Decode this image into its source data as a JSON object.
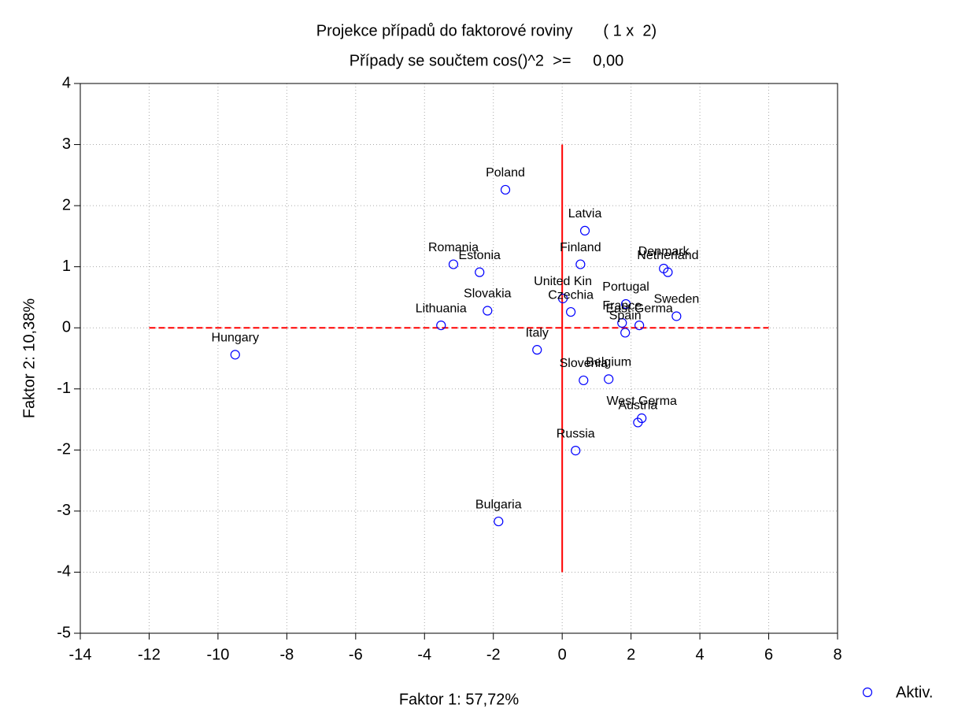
{
  "chart_data": {
    "type": "scatter",
    "title": "Projekce případů do faktorové roviny       ( 1 x  2)",
    "subtitle": "Případy se součtem cos()^2  >=     0,00",
    "x_label": "Faktor 1: 57,72%",
    "y_label": "Faktor 2: 10,38%",
    "series": [
      {
        "name": "Aktiv.",
        "color": "#0000ff",
        "labels": [
          "Poland",
          "Latvia",
          "Finland",
          "Denmark",
          "Netherland",
          "Romania",
          "Estonia",
          "United Kin",
          "Portugal",
          "Czechia",
          "Sweden",
          "France",
          "East Germa",
          "Spain",
          "Slovakia",
          "Lithuania",
          "Hungary",
          "Italy",
          "Belgium",
          "Slovenia",
          "West Germa",
          "Austria",
          "Russia",
          "Bulgaria"
        ],
        "x": [
          -1.65,
          0.66,
          0.53,
          2.95,
          3.07,
          -3.16,
          -2.4,
          0.02,
          1.85,
          0.25,
          3.32,
          1.74,
          2.24,
          1.83,
          -2.17,
          -3.52,
          -9.5,
          -0.73,
          1.35,
          0.62,
          2.31,
          2.2,
          0.39,
          -1.85
        ],
        "values": [
          2.26,
          1.59,
          1.04,
          0.97,
          0.91,
          1.04,
          0.91,
          0.48,
          0.39,
          0.26,
          0.19,
          0.08,
          0.04,
          -0.08,
          0.28,
          0.04,
          -0.44,
          -0.36,
          -0.84,
          -0.86,
          -1.48,
          -1.55,
          -2.01,
          -3.17
        ]
      }
    ],
    "xlim": [
      -14,
      8
    ],
    "xticks": [
      -14,
      -12,
      -10,
      -8,
      -6,
      -4,
      -2,
      0,
      2,
      4,
      6,
      8
    ],
    "ylim": [
      -5,
      4
    ],
    "yticks": [
      -5,
      -4,
      -3,
      -2,
      -1,
      0,
      1,
      2,
      3,
      4
    ],
    "grid": true,
    "reference_lines": {
      "horizontal": {
        "y": 0,
        "x_range": [
          -12,
          6
        ],
        "color": "#ff0000"
      },
      "vertical": {
        "x": 0,
        "y_range": [
          -4,
          3
        ],
        "color": "#ff0000"
      }
    },
    "legend": "bottom-right"
  }
}
